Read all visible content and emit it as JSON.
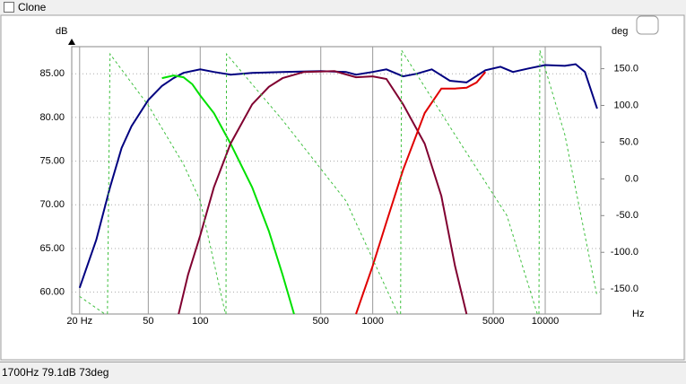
{
  "header": {
    "checkbox_label": "Clone"
  },
  "status": "1700Hz 79.1dB  73deg",
  "chart_data": {
    "type": "line",
    "log_x": true,
    "grid": true,
    "ylabel": "dB",
    "y2label": "deg",
    "xlabel": "Hz",
    "xlim": [
      18,
      21000
    ],
    "ylim": [
      57.5,
      88.1
    ],
    "y2lim": [
      -184,
      180
    ],
    "xticks": [
      {
        "value": 20,
        "label": "20 Hz"
      },
      50,
      100,
      500,
      1000,
      5000,
      10000
    ],
    "yticks": [
      {
        "value": 60,
        "label": "60.00"
      },
      {
        "value": 65,
        "label": "65.00"
      },
      {
        "value": 70,
        "label": "70.00"
      },
      {
        "value": 75,
        "label": "75.00"
      },
      {
        "value": 80,
        "label": "80.00"
      },
      {
        "value": 85,
        "label": "85.00"
      }
    ],
    "y2ticks": [
      {
        "value": 150,
        "label": "150.0"
      },
      {
        "value": 100,
        "label": "100.0"
      },
      {
        "value": 50,
        "label": "50.0"
      },
      {
        "value": 0,
        "label": "0.0"
      },
      {
        "value": -50,
        "label": "-50.0"
      },
      {
        "value": -100,
        "label": "-100.0"
      },
      {
        "value": -150,
        "label": "-150.0"
      }
    ],
    "series": [
      {
        "color": "#000080",
        "width": 2,
        "x": [
          20,
          25,
          30,
          35,
          40,
          50,
          60,
          70,
          80,
          100,
          120,
          150,
          200,
          300,
          500,
          700,
          800,
          1000,
          1200,
          1500,
          1800,
          2200,
          2800,
          3500,
          4500,
          5500,
          6500,
          8000,
          10000,
          13000,
          15000,
          17000,
          20000
        ],
        "values": [
          60.5,
          66,
          72,
          76.5,
          79,
          82,
          83.6,
          84.5,
          85.1,
          85.5,
          85.2,
          84.9,
          85.1,
          85.2,
          85.3,
          85.2,
          84.9,
          85.2,
          85.5,
          84.7,
          85,
          85.5,
          84.2,
          84,
          85.4,
          85.8,
          85.2,
          85.6,
          86,
          85.9,
          86.1,
          85.2,
          81
        ]
      },
      {
        "color": "#00e000",
        "width": 2,
        "x": [
          60,
          70,
          80,
          90,
          100,
          120,
          150,
          200,
          250,
          300,
          350
        ],
        "values": [
          84.5,
          84.8,
          84.6,
          83.8,
          82.5,
          80.5,
          77,
          72,
          67,
          62,
          57.5
        ]
      },
      {
        "color": "#800030",
        "width": 2,
        "x": [
          75,
          85,
          100,
          120,
          150,
          200,
          250,
          300,
          400,
          600,
          800,
          1000,
          1200,
          1500,
          2000,
          2500,
          3000,
          3500
        ],
        "values": [
          57.5,
          62,
          66.5,
          72,
          77,
          81.5,
          83.5,
          84.5,
          85.2,
          85.3,
          84.6,
          84.7,
          84.4,
          81.5,
          77,
          71,
          63,
          57.5
        ]
      },
      {
        "color": "#e00000",
        "width": 2,
        "x": [
          800,
          1000,
          1200,
          1500,
          2000,
          2500,
          3000,
          3500,
          4000,
          4500
        ],
        "values": [
          57.5,
          63,
          68,
          74,
          80.5,
          83.3,
          83.3,
          83.4,
          84,
          85.2
        ]
      },
      {
        "color": "#40c040",
        "width": 1,
        "dashed": true,
        "axis": "y2",
        "x": [
          20,
          28,
          null,
          29,
          30,
          50,
          80,
          100,
          130,
          140,
          null,
          141,
          142,
          300,
          700,
          1400,
          null,
          1450,
          1470,
          3000,
          6000,
          9000,
          null,
          9200,
          9300,
          13000,
          20000
        ],
        "values": [
          -160,
          -184,
          null,
          -184,
          170,
          100,
          20,
          -30,
          -150,
          -184,
          null,
          -184,
          170,
          80,
          -30,
          -184,
          null,
          -184,
          175,
          60,
          -50,
          -184,
          null,
          -184,
          175,
          60,
          -160
        ]
      }
    ]
  }
}
